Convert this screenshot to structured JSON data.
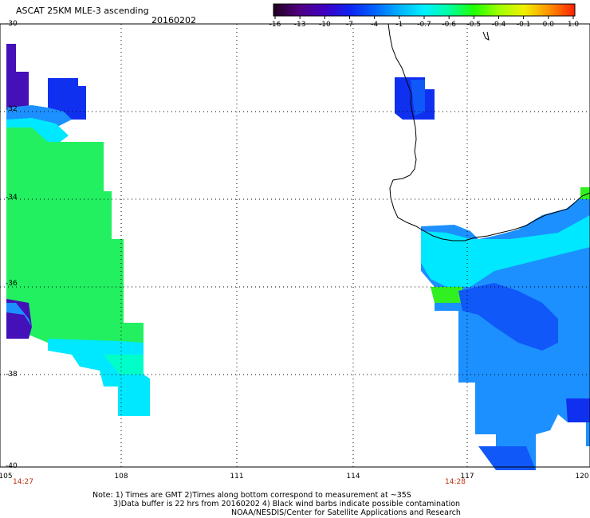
{
  "title": "ASCAT 25KM MLE-3 ascending",
  "date": "20160202",
  "colorbar": {
    "labels": [
      "-16",
      "-13",
      "-10",
      "-7",
      "-4",
      "-1",
      "-0.7",
      "-0.6",
      "-0.5",
      "-0.4",
      "-0.1",
      "0.0",
      "1.0"
    ],
    "colors": [
      "#200020",
      "#500080",
      "#4000c0",
      "#1020f0",
      "#0060ff",
      "#00b0ff",
      "#00f0ff",
      "#00ffa0",
      "#20ff00",
      "#a0ff00",
      "#f0f000",
      "#ff9000",
      "#ff2000"
    ]
  },
  "axes": {
    "lat_labels": [
      "-30",
      "-32",
      "-34",
      "-36",
      "-38",
      "-40"
    ],
    "lon_labels": [
      "105",
      "108",
      "111",
      "114",
      "117",
      "120"
    ]
  },
  "pass_times": [
    "14:27",
    "14:28"
  ],
  "notes": [
    "Note: 1) Times are GMT 2)Times along bottom correspond to measurement at ~35S",
    "3)Data buffer is 22 hrs from 20160202 4) Black wind barbs indicate possible contamination",
    "NOAA/NESDIS/Center for Satellite Applications and Research"
  ]
}
